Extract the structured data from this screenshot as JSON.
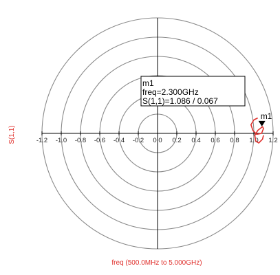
{
  "chart_data": {
    "type": "polar",
    "ylabel": "S(1,1)",
    "xlabel": "freq (500.0MHz to 5.000GHz)",
    "ticks": [
      "-1.2",
      "-1.0",
      "-0.8",
      "-0.6",
      "-0.4",
      "-0.2",
      "0.0",
      "0.2",
      "0.4",
      "0.6",
      "0.8",
      "1.0",
      "1.2"
    ],
    "tick_values": [
      -1.2,
      -1.0,
      -0.8,
      -0.6,
      -0.4,
      -0.2,
      0.0,
      0.2,
      0.4,
      0.6,
      0.8,
      1.0,
      1.2
    ],
    "radial_circles": [
      0.2,
      0.4,
      0.6,
      0.8,
      1.0,
      1.2
    ],
    "range": [
      -1.2,
      1.2
    ],
    "series": [
      {
        "color": "#e0302c",
        "points": [
          [
            1.04,
            0.16
          ],
          [
            1.0,
            0.14
          ],
          [
            0.97,
            0.09
          ],
          [
            0.99,
            0.03
          ],
          [
            1.03,
            -0.01
          ],
          [
            1.08,
            0.0
          ],
          [
            1.1,
            0.05
          ],
          [
            1.09,
            0.07
          ],
          [
            1.04,
            0.03
          ],
          [
            1.01,
            -0.02
          ],
          [
            1.02,
            -0.08
          ],
          [
            1.05,
            -0.1
          ],
          [
            1.09,
            -0.06
          ],
          [
            1.1,
            -0.02
          ]
        ]
      }
    ],
    "marker": {
      "name": "m1",
      "lines": [
        "m1",
        "freq=2.300GHz",
        "S(1,1)=1.086 / 0.067"
      ],
      "magnitude": 1.086,
      "angle": 0.067
    },
    "colors": {
      "trace": "#e0302c",
      "grid": "#8a8a8a",
      "axis": "#000000"
    }
  }
}
